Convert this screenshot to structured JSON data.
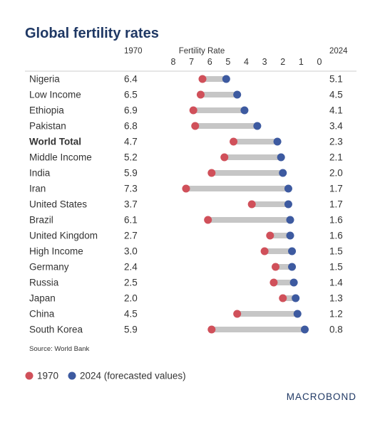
{
  "title": "Global fertility rates",
  "source": "Source: World Bank",
  "brand": "MACROBOND",
  "colors": {
    "title": "#1f3864",
    "text": "#333333",
    "red_dot": "#d0505a",
    "blue_dot": "#3d5aa0",
    "connector": "#c6c6c6",
    "rule": "#cccccc"
  },
  "chart_data": {
    "type": "dumbbell",
    "xlabel": "Fertility Rate",
    "x_axis_reversed": true,
    "xlim": [
      8,
      0
    ],
    "ticks": [
      8,
      7,
      6,
      5,
      4,
      3,
      2,
      1,
      0
    ],
    "col_left_header": "1970",
    "col_right_header": "2024",
    "legend": [
      {
        "label": "1970",
        "color": "#d0505a"
      },
      {
        "label": "2024 (forecasted values)",
        "color": "#3d5aa0"
      }
    ],
    "rows": [
      {
        "label": "Nigeria",
        "bold": false,
        "v1970": 6.4,
        "v2024": 5.1,
        "t1970": "6.4",
        "t2024": "5.1"
      },
      {
        "label": "Low Income",
        "bold": false,
        "v1970": 6.5,
        "v2024": 4.5,
        "t1970": "6.5",
        "t2024": "4.5"
      },
      {
        "label": "Ethiopia",
        "bold": false,
        "v1970": 6.9,
        "v2024": 4.1,
        "t1970": "6.9",
        "t2024": "4.1"
      },
      {
        "label": "Pakistan",
        "bold": false,
        "v1970": 6.8,
        "v2024": 3.4,
        "t1970": "6.8",
        "t2024": "3.4"
      },
      {
        "label": "World Total",
        "bold": true,
        "v1970": 4.7,
        "v2024": 2.3,
        "t1970": "4.7",
        "t2024": "2.3"
      },
      {
        "label": "Middle Income",
        "bold": false,
        "v1970": 5.2,
        "v2024": 2.1,
        "t1970": "5.2",
        "t2024": "2.1"
      },
      {
        "label": "India",
        "bold": false,
        "v1970": 5.9,
        "v2024": 2.0,
        "t1970": "5.9",
        "t2024": "2.0"
      },
      {
        "label": "Iran",
        "bold": false,
        "v1970": 7.3,
        "v2024": 1.7,
        "t1970": "7.3",
        "t2024": "1.7"
      },
      {
        "label": "United States",
        "bold": false,
        "v1970": 3.7,
        "v2024": 1.7,
        "t1970": "3.7",
        "t2024": "1.7"
      },
      {
        "label": "Brazil",
        "bold": false,
        "v1970": 6.1,
        "v2024": 1.6,
        "t1970": "6.1",
        "t2024": "1.6"
      },
      {
        "label": "United Kingdom",
        "bold": false,
        "v1970": 2.7,
        "v2024": 1.6,
        "t1970": "2.7",
        "t2024": "1.6"
      },
      {
        "label": "High Income",
        "bold": false,
        "v1970": 3.0,
        "v2024": 1.5,
        "t1970": "3.0",
        "t2024": "1.5"
      },
      {
        "label": "Germany",
        "bold": false,
        "v1970": 2.4,
        "v2024": 1.5,
        "t1970": "2.4",
        "t2024": "1.5"
      },
      {
        "label": "Russia",
        "bold": false,
        "v1970": 2.5,
        "v2024": 1.4,
        "t1970": "2.5",
        "t2024": "1.4"
      },
      {
        "label": "Japan",
        "bold": false,
        "v1970": 2.0,
        "v2024": 1.3,
        "t1970": "2.0",
        "t2024": "1.3"
      },
      {
        "label": "China",
        "bold": false,
        "v1970": 4.5,
        "v2024": 1.2,
        "t1970": "4.5",
        "t2024": "1.2"
      },
      {
        "label": "South Korea",
        "bold": false,
        "v1970": 5.9,
        "v2024": 0.8,
        "t1970": "5.9",
        "t2024": "0.8"
      }
    ]
  }
}
